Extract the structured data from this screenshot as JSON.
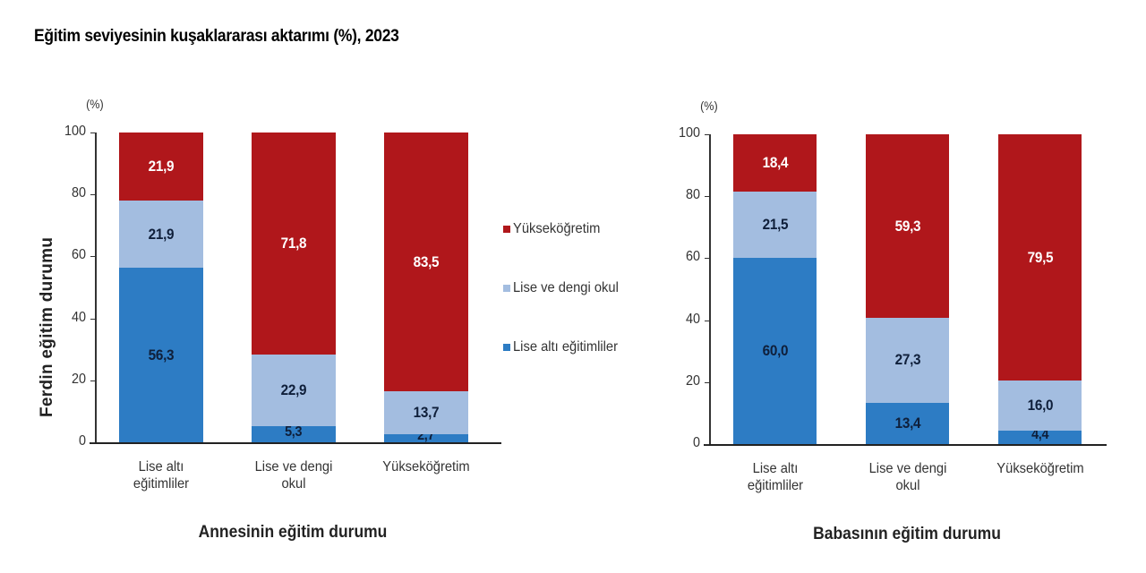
{
  "title": "Eğitim seviyesinin kuşaklararası aktarımı (%), 2023",
  "colors": {
    "yuksekogretim": "#b0171b",
    "lise": "#a3bde0",
    "lise_alti": "#2d7cc4",
    "label_dark": "#0f1f3a",
    "label_light": "#ffffff"
  },
  "legend": [
    {
      "label": "Yükseköğretim",
      "color": "#b0171b"
    },
    {
      "label": "Lise ve dengi okul",
      "color": "#a3bde0"
    },
    {
      "label": "Lise altı eğitimliler",
      "color": "#2d7cc4"
    }
  ],
  "y_axis_title": "Ferdin eğitim durumu",
  "chart_data": [
    {
      "type": "bar",
      "stacked": true,
      "title": "Annesinin eğitim durumu",
      "xlabel": "Annesinin eğitim durumu",
      "ylabel": "Ferdin eğitim durumu",
      "unit": "(%)",
      "ylim": [
        0,
        100
      ],
      "yticks": [
        0,
        20,
        40,
        60,
        80,
        100
      ],
      "categories": [
        "Lise altı eğitimliler",
        "Lise ve dengi okul",
        "Yükseköğretim"
      ],
      "category_lines": [
        [
          "Lise altı",
          "eğitimliler"
        ],
        [
          "Lise ve dengi",
          "okul"
        ],
        [
          "Yükseköğretim"
        ]
      ],
      "series": [
        {
          "name": "Lise altı eğitimliler",
          "values": [
            56.3,
            5.3,
            2.7
          ],
          "labels": [
            "56,3",
            "5,3",
            "2,7"
          ]
        },
        {
          "name": "Lise ve dengi okul",
          "values": [
            21.9,
            22.9,
            13.7
          ],
          "labels": [
            "21,9",
            "22,9",
            "13,7"
          ]
        },
        {
          "name": "Yükseköğretim",
          "values": [
            21.9,
            71.8,
            83.5
          ],
          "labels": [
            "21,9",
            "71,8",
            "83,5"
          ]
        }
      ]
    },
    {
      "type": "bar",
      "stacked": true,
      "title": "Babasının eğitim durumu",
      "xlabel": "Babasının eğitim durumu",
      "ylabel": "",
      "unit": "(%)",
      "ylim": [
        0,
        100
      ],
      "yticks": [
        0,
        20,
        40,
        60,
        80,
        100
      ],
      "categories": [
        "Lise altı eğitimliler",
        "Lise ve dengi okul",
        "Yükseköğretim"
      ],
      "category_lines": [
        [
          "Lise altı",
          "eğitimliler"
        ],
        [
          "Lise ve dengi",
          "okul"
        ],
        [
          "Yükseköğretim"
        ]
      ],
      "series": [
        {
          "name": "Lise altı eğitimliler",
          "values": [
            60.0,
            13.4,
            4.4
          ],
          "labels": [
            "60,0",
            "13,4",
            "4,4"
          ]
        },
        {
          "name": "Lise ve dengi okul",
          "values": [
            21.5,
            27.3,
            16.0
          ],
          "labels": [
            "21,5",
            "27,3",
            "16,0"
          ]
        },
        {
          "name": "Yükseköğretim",
          "values": [
            18.4,
            59.3,
            79.5
          ],
          "labels": [
            "18,4",
            "59,3",
            "79,5"
          ]
        }
      ]
    }
  ]
}
